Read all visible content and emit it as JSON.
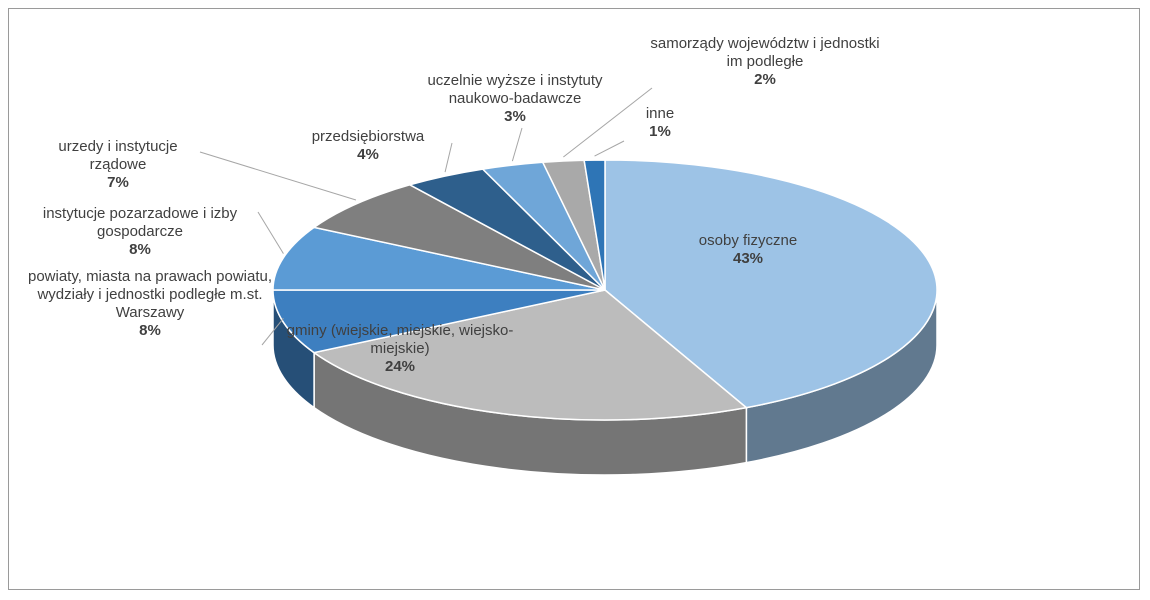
{
  "chart_data": {
    "type": "pie3d",
    "categories": [
      "osoby fizyczne",
      "gminy (wiejskie, miejskie, wiejsko-miejskie)",
      "powiaty, miasta na prawach powiatu, wydziały i jednostki podległe m.st. Warszawy",
      "instytucje pozarzadowe i izby gospodarcze",
      "urzedy i instytucje rządowe",
      "przedsiębiorstwa",
      "uczelnie wyższe i instytuty naukowo-badawcze",
      "samorządy województw i jednostki im podległe",
      "inne"
    ],
    "values": [
      43,
      24,
      8,
      8,
      7,
      4,
      3,
      2,
      1
    ],
    "value_labels": [
      "43%",
      "24%",
      "8%",
      "8%",
      "7%",
      "4%",
      "3%",
      "2%",
      "1%"
    ],
    "colors": [
      "#9dc3e6",
      "#bcbcbc",
      "#3d7fc0",
      "#5b9bd5",
      "#7f7f7f",
      "#2e5f8c",
      "#6fa6d8",
      "#a9a9a9",
      "#2e75b6"
    ]
  }
}
